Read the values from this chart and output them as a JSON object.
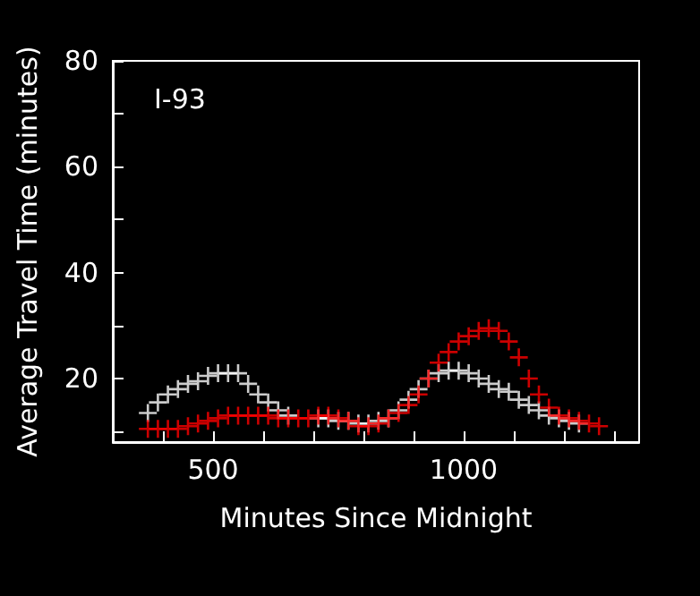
{
  "chart_data": {
    "type": "scatter",
    "xlabel": "Minutes Since Midnight",
    "ylabel": "Average Travel Time (minutes)",
    "annotations": [
      "I-93"
    ],
    "marker": "cross",
    "grid": false,
    "x": [
      370,
      390,
      410,
      430,
      450,
      470,
      490,
      510,
      530,
      550,
      570,
      590,
      610,
      630,
      650,
      670,
      690,
      710,
      730,
      750,
      770,
      790,
      810,
      830,
      850,
      870,
      890,
      910,
      930,
      950,
      970,
      990,
      1010,
      1030,
      1050,
      1070,
      1090,
      1110,
      1130,
      1150,
      1170,
      1190,
      1210,
      1230,
      1250,
      1270
    ],
    "series": [
      {
        "color": "#ffffff",
        "values": [
          13.5,
          15.5,
          17,
          18,
          19,
          19.5,
          20.5,
          21,
          21,
          21,
          19,
          17,
          15.5,
          14,
          13,
          null,
          null,
          12.5,
          12.5,
          12,
          12,
          11.5,
          11.5,
          12,
          12.5,
          14,
          16,
          18,
          20,
          21,
          21.5,
          21.5,
          21,
          20,
          19,
          18,
          17.5,
          16,
          15,
          14,
          13,
          12.5,
          12,
          11.5,
          null,
          null
        ]
      },
      {
        "color": "#ff0000",
        "values": [
          10.5,
          10.5,
          10.5,
          10.5,
          11,
          11.5,
          12,
          12.5,
          13,
          13,
          13,
          13,
          13,
          12.5,
          12.5,
          12.5,
          12.5,
          13,
          13,
          12.5,
          12,
          11,
          11,
          11.5,
          12.5,
          13.5,
          15,
          17,
          20,
          23,
          25,
          27,
          28,
          29,
          29.5,
          29,
          27,
          24,
          20,
          17,
          14.5,
          13,
          12.5,
          12,
          11.5,
          11
        ]
      }
    ],
    "xlim": [
      300,
      1350
    ],
    "xticks": [
      {
        "value": 400,
        "label": null
      },
      500,
      {
        "value": 600,
        "label": null
      },
      {
        "value": 700,
        "label": null
      },
      {
        "value": 800,
        "label": null
      },
      {
        "value": 900,
        "label": null
      },
      1000,
      {
        "value": 1100,
        "label": null
      },
      {
        "value": 1200,
        "label": null
      },
      {
        "value": 1300,
        "label": null
      }
    ],
    "ylim": [
      8,
      80
    ],
    "yticks": [
      {
        "value": 10,
        "label": null
      },
      20,
      {
        "value": 30,
        "label": null
      },
      40,
      {
        "value": 50,
        "label": null
      },
      60,
      {
        "value": 70,
        "label": null
      },
      80
    ]
  }
}
